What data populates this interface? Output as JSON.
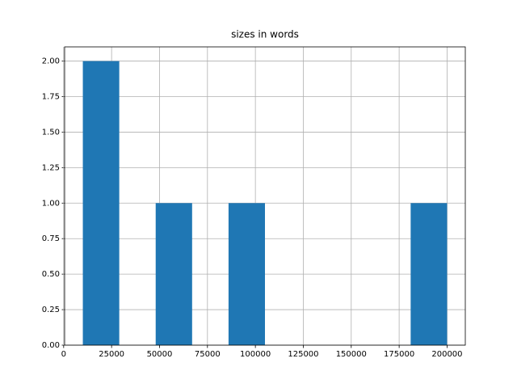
{
  "chart_data": {
    "type": "histogram",
    "title": "sizes in words",
    "bins": [
      10000,
      29000,
      48000,
      67000,
      86000,
      105000,
      124000,
      143000,
      162000,
      181000,
      200000
    ],
    "values": [
      2,
      0,
      1,
      0,
      1,
      0,
      0,
      0,
      0,
      1
    ],
    "color": "#1f77b4",
    "xlim": [
      500,
      209500
    ],
    "xticks": [
      0,
      25000,
      50000,
      75000,
      100000,
      125000,
      150000,
      175000,
      200000
    ],
    "ylim": [
      0,
      2.1
    ],
    "yticks": [
      {
        "value": 0,
        "label": "0.00"
      },
      {
        "value": 0.25,
        "label": "0.25"
      },
      {
        "value": 0.5,
        "label": "0.50"
      },
      {
        "value": 0.75,
        "label": "0.75"
      },
      {
        "value": 1,
        "label": "1.00"
      },
      {
        "value": 1.25,
        "label": "1.25"
      },
      {
        "value": 1.5,
        "label": "1.50"
      },
      {
        "value": 1.75,
        "label": "1.75"
      },
      {
        "value": 2,
        "label": "2.00"
      }
    ],
    "grid": true
  }
}
